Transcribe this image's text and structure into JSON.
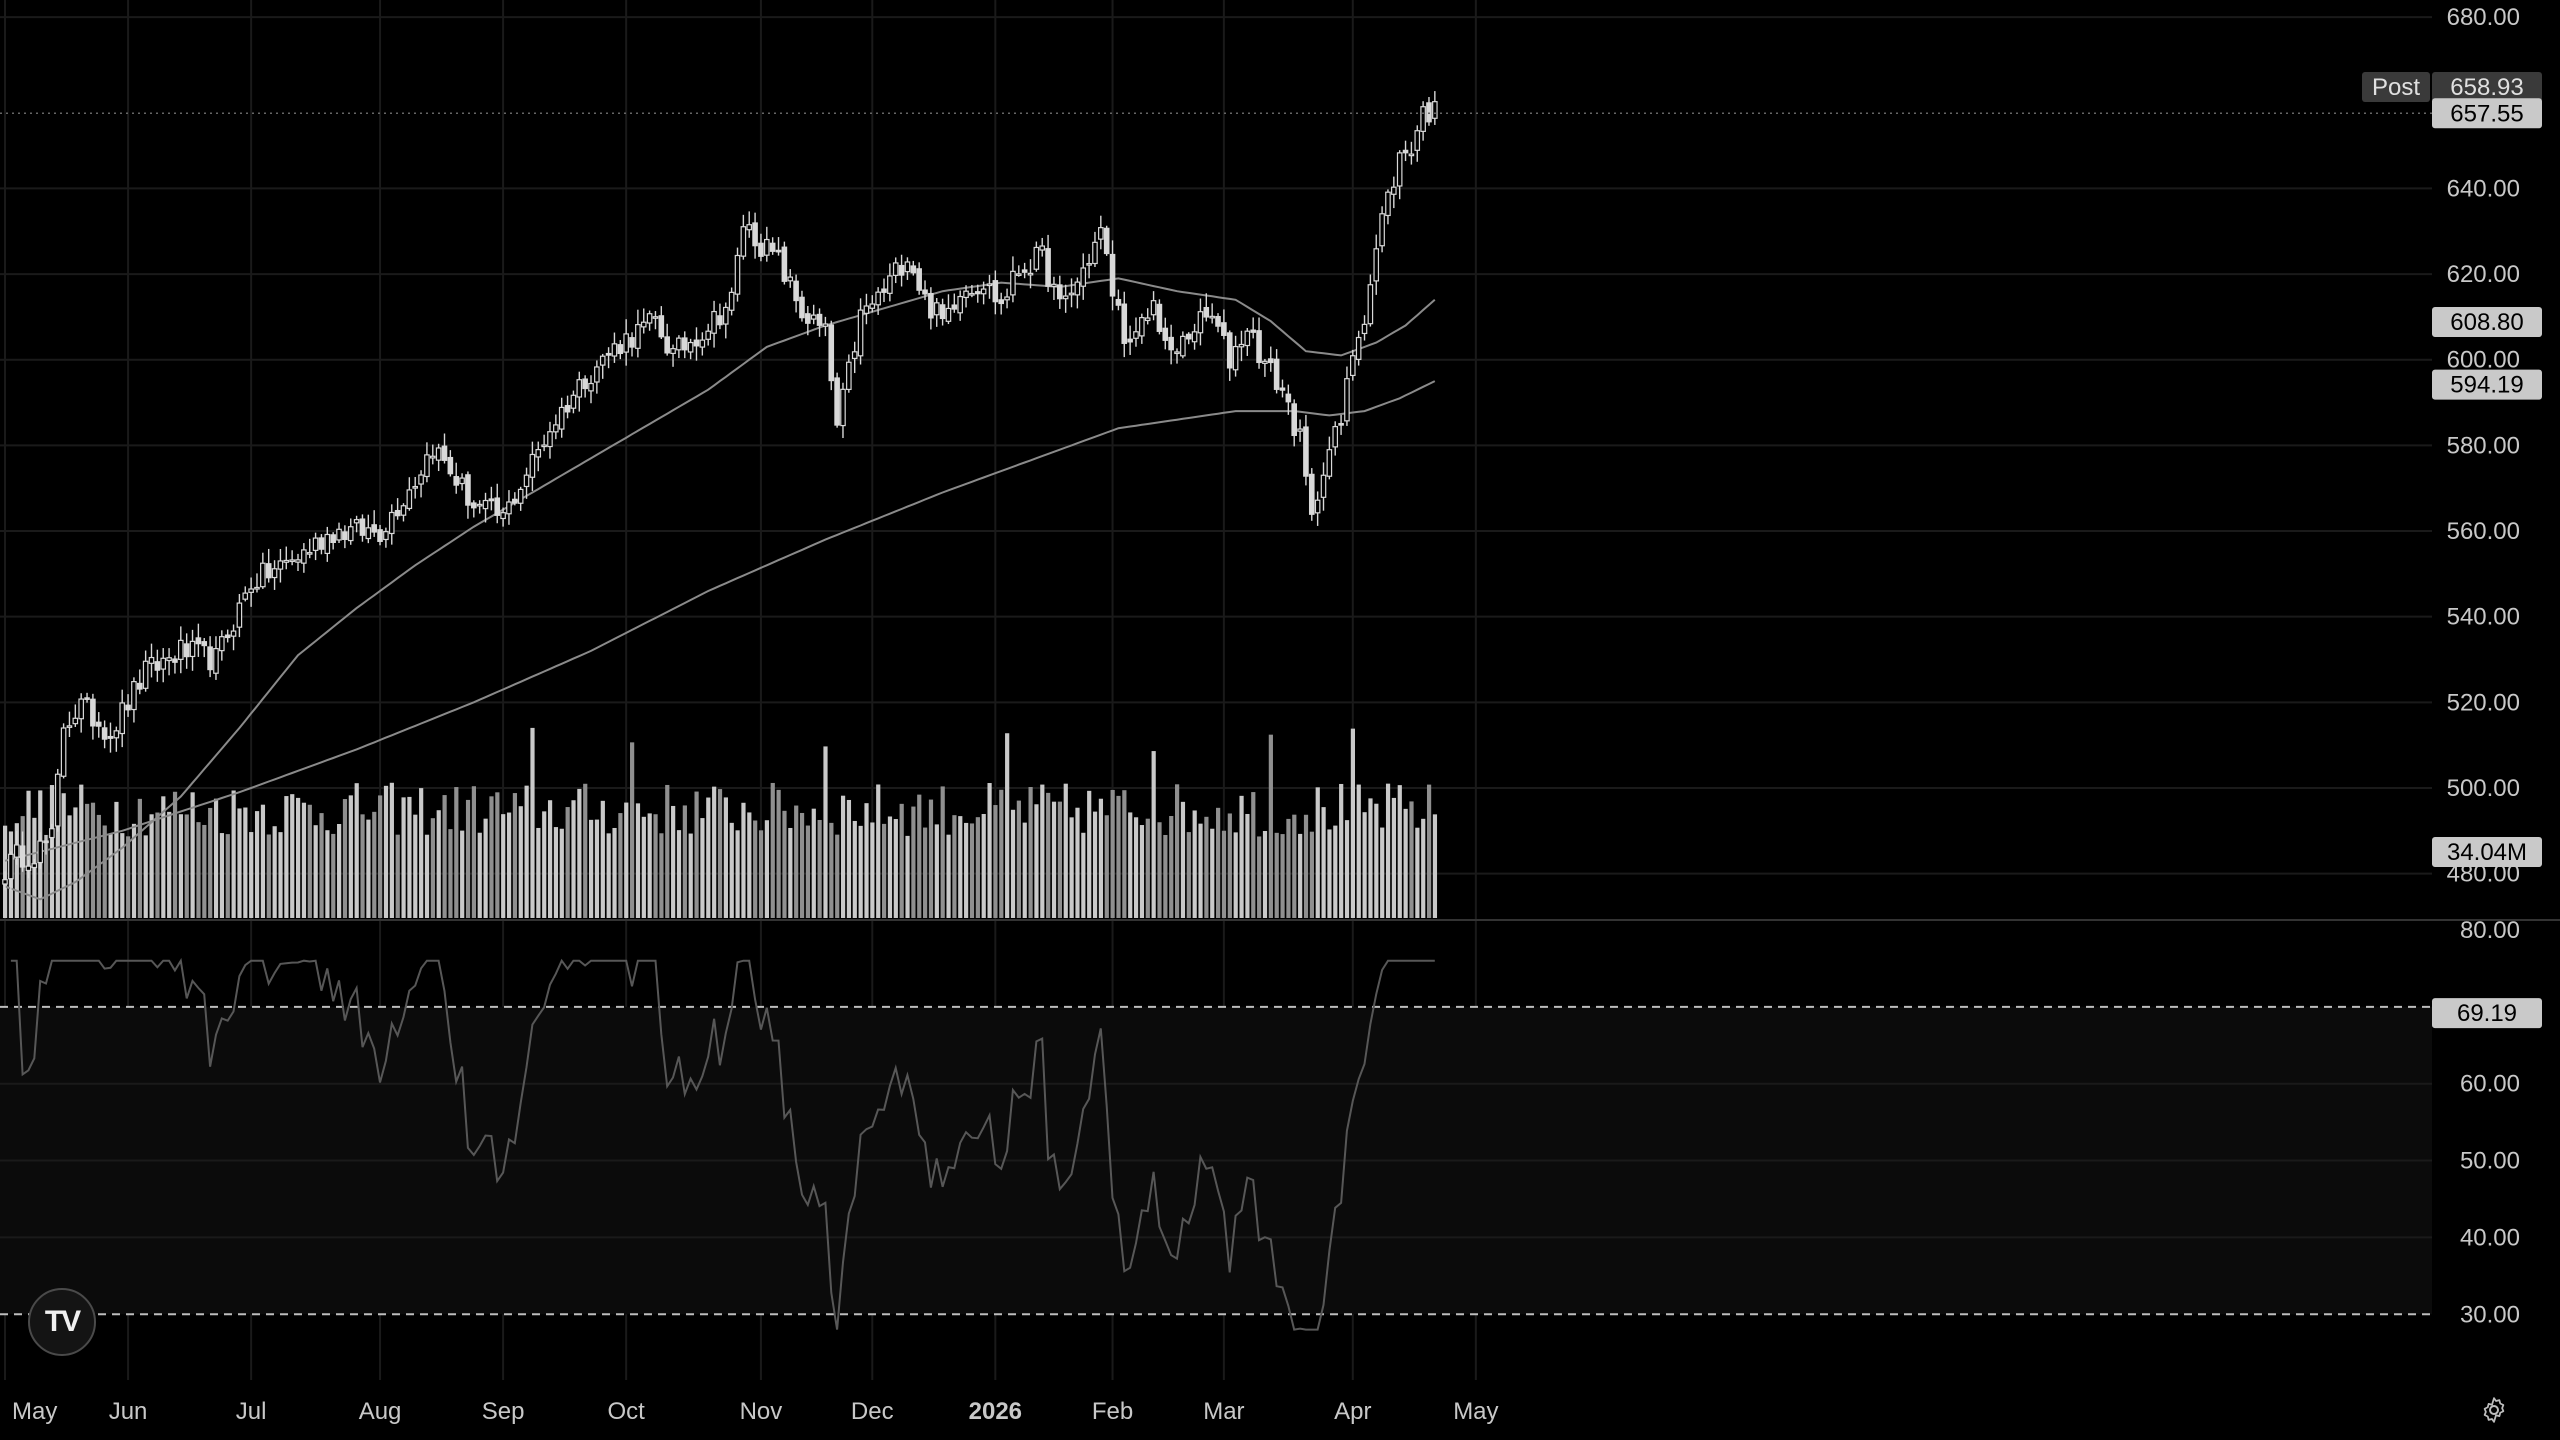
{
  "chart_data": {
    "type": "candlestick",
    "price_axis": {
      "range": [
        468,
        684
      ],
      "ticks": [
        "680.00",
        "640.00",
        "620.00",
        "600.00",
        "580.00",
        "560.00",
        "540.00",
        "520.00",
        "500.00",
        "480.00"
      ]
    },
    "time_axis": {
      "labels": [
        {
          "text": "May",
          "index": 0
        },
        {
          "text": "Jun",
          "index": 21
        },
        {
          "text": "Jul",
          "index": 42
        },
        {
          "text": "Aug",
          "index": 64
        },
        {
          "text": "Sep",
          "index": 85
        },
        {
          "text": "Oct",
          "index": 106
        },
        {
          "text": "Nov",
          "index": 129
        },
        {
          "text": "Dec",
          "index": 148
        },
        {
          "text": "2026",
          "index": 169,
          "bold": true
        },
        {
          "text": "Feb",
          "index": 189
        },
        {
          "text": "Mar",
          "index": 208
        },
        {
          "text": "Apr",
          "index": 230
        },
        {
          "text": "May",
          "index": 251
        }
      ]
    },
    "price_labels": {
      "post_tag": "Post",
      "post_value": "658.93",
      "last_value": "657.55",
      "ma_fast_value": "608.80",
      "ma_slow_value": "594.19"
    },
    "price_anchors": [
      [
        0,
        481
      ],
      [
        2,
        484
      ],
      [
        5,
        485
      ],
      [
        8,
        488
      ],
      [
        10,
        515
      ],
      [
        13,
        519
      ],
      [
        18,
        513
      ],
      [
        24,
        527
      ],
      [
        30,
        532
      ],
      [
        36,
        530
      ],
      [
        42,
        548
      ],
      [
        50,
        554
      ],
      [
        56,
        560
      ],
      [
        64,
        560
      ],
      [
        70,
        572
      ],
      [
        73,
        580
      ],
      [
        80,
        566
      ],
      [
        85,
        563
      ],
      [
        93,
        584
      ],
      [
        99,
        596
      ],
      [
        105,
        604
      ],
      [
        111,
        609
      ],
      [
        114,
        601
      ],
      [
        120,
        608
      ],
      [
        124,
        614
      ],
      [
        126,
        632
      ],
      [
        129,
        627
      ],
      [
        132,
        623
      ],
      [
        136,
        611
      ],
      [
        140,
        606
      ],
      [
        142,
        584
      ],
      [
        146,
        610
      ],
      [
        150,
        616
      ],
      [
        154,
        625
      ],
      [
        157,
        614
      ],
      [
        160,
        609
      ],
      [
        163,
        617
      ],
      [
        167,
        618
      ],
      [
        170,
        613
      ],
      [
        173,
        621
      ],
      [
        177,
        624
      ],
      [
        180,
        612
      ],
      [
        183,
        618
      ],
      [
        187,
        630
      ],
      [
        189,
        616
      ],
      [
        192,
        602
      ],
      [
        196,
        613
      ],
      [
        199,
        600
      ],
      [
        203,
        608
      ],
      [
        206,
        610
      ],
      [
        209,
        600
      ],
      [
        212,
        608
      ],
      [
        215,
        599
      ],
      [
        218,
        593
      ],
      [
        221,
        581
      ],
      [
        223,
        562
      ],
      [
        225,
        576
      ],
      [
        228,
        585
      ],
      [
        230,
        602
      ],
      [
        232,
        611
      ],
      [
        235,
        633
      ],
      [
        238,
        647
      ],
      [
        240,
        650
      ],
      [
        242,
        658
      ],
      [
        244,
        658
      ]
    ],
    "ma_fast_anchors": [
      [
        0,
        477
      ],
      [
        6,
        474
      ],
      [
        12,
        478
      ],
      [
        20,
        486
      ],
      [
        30,
        498
      ],
      [
        40,
        514
      ],
      [
        50,
        531
      ],
      [
        60,
        542
      ],
      [
        70,
        552
      ],
      [
        80,
        561
      ],
      [
        90,
        569
      ],
      [
        100,
        577
      ],
      [
        110,
        585
      ],
      [
        120,
        593
      ],
      [
        130,
        603
      ],
      [
        140,
        608
      ],
      [
        150,
        612
      ],
      [
        160,
        616
      ],
      [
        170,
        618
      ],
      [
        180,
        617
      ],
      [
        190,
        619
      ],
      [
        200,
        616
      ],
      [
        210,
        614
      ],
      [
        216,
        609
      ],
      [
        222,
        602
      ],
      [
        228,
        601
      ],
      [
        234,
        604
      ],
      [
        239,
        608
      ],
      [
        244,
        614
      ]
    ],
    "ma_slow_anchors": [
      [
        0,
        483
      ],
      [
        20,
        490
      ],
      [
        40,
        499
      ],
      [
        60,
        509
      ],
      [
        80,
        520
      ],
      [
        100,
        532
      ],
      [
        120,
        546
      ],
      [
        140,
        558
      ],
      [
        160,
        569
      ],
      [
        180,
        579
      ],
      [
        190,
        584
      ],
      [
        200,
        586
      ],
      [
        210,
        588
      ],
      [
        220,
        588
      ],
      [
        226,
        587
      ],
      [
        232,
        588
      ],
      [
        238,
        591
      ],
      [
        244,
        595
      ]
    ],
    "volume": {
      "last_value": "34.04M",
      "max_display_M": 70
    },
    "rsi": {
      "ticks": [
        "80.00",
        "60.00",
        "50.00",
        "40.00",
        "30.00"
      ],
      "range": [
        26,
        80
      ],
      "overbought": 70,
      "oversold": 30,
      "last_value": "69.19"
    }
  },
  "branding": {
    "logo_text": "TV",
    "logo_icon": "tradingview-logo"
  },
  "controls": {
    "settings_icon": "gear-icon"
  },
  "colors": {
    "background": "#000000",
    "grid": "#1a1a1a",
    "candle": "#d8d8d8",
    "ma_line": "#8a8a8a",
    "volume_light": "#c9c9c9",
    "volume_dark": "#8f8f8f",
    "rsi_line": "#575757",
    "axis_text": "#c8c8c8",
    "label_bg": "#c9c9c9",
    "label_text": "#000000"
  }
}
